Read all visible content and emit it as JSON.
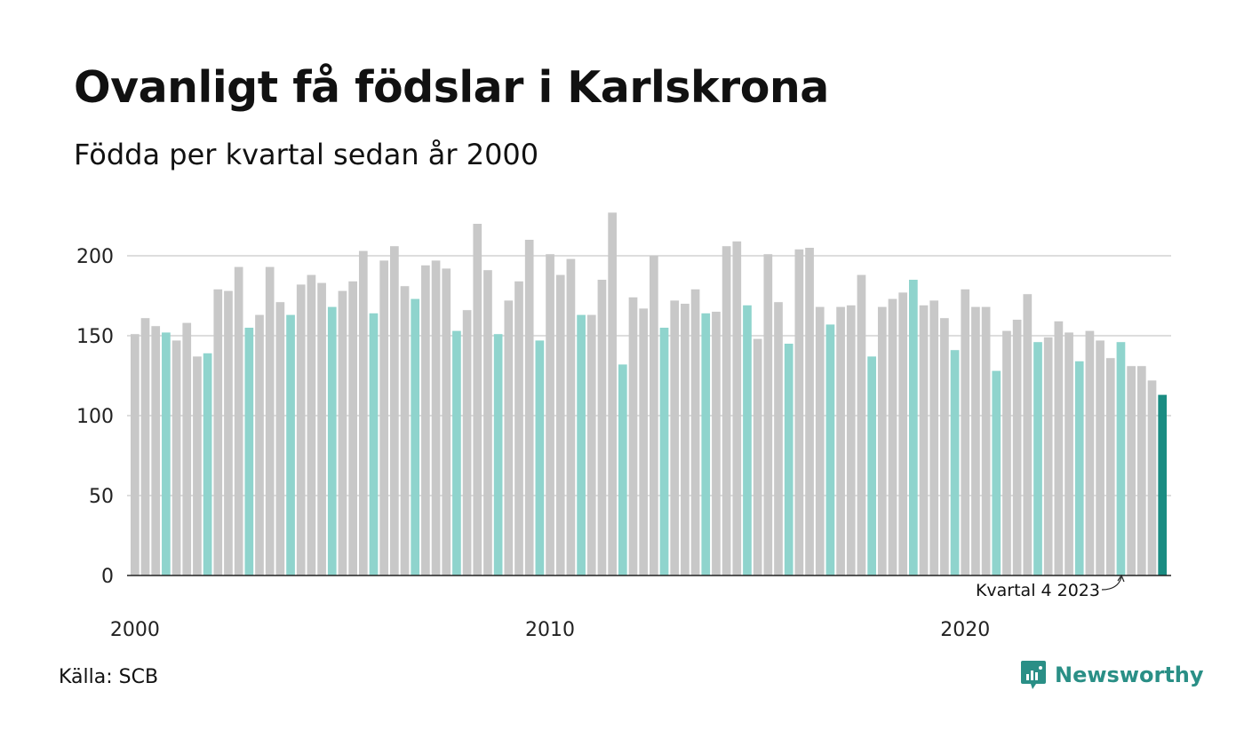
{
  "title": "Ovanligt få födslar i Karlskrona",
  "subtitle": "Födda per kvartal sedan år 2000",
  "source": "Källa: SCB",
  "brand": {
    "name": "Newsworthy",
    "icon": "newsworthy-logo-icon"
  },
  "colors": {
    "default_bar": "#c8c8c8",
    "q4_bar": "#8fd4cd",
    "latest_bar": "#1a8c82",
    "grid": "#dddddd",
    "axis": "#222222",
    "brand": "#2a8f86"
  },
  "chart_data": {
    "type": "bar",
    "title": "Ovanligt få födslar i Karlskrona",
    "subtitle": "Födda per kvartal sedan år 2000",
    "xlabel": "",
    "ylabel": "",
    "ylim": [
      0,
      230
    ],
    "yticks": [
      0,
      50,
      100,
      150,
      200
    ],
    "xtick_labels": [
      "2000",
      "2010",
      "2020"
    ],
    "grid": true,
    "highlight": "Kvartal 4 bars in teal; latest quarter in dark teal",
    "annotation": "Kvartal 4 2023",
    "series": [
      {
        "values": [
          151,
          161,
          156,
          152,
          147,
          158,
          137,
          139,
          179,
          178,
          193,
          155,
          163,
          193,
          171,
          163,
          182,
          188,
          183,
          168,
          178,
          184,
          203,
          164,
          197,
          206,
          181,
          173,
          194,
          197,
          192,
          153,
          166,
          220,
          191,
          151,
          172,
          184,
          210,
          147,
          201,
          188,
          198,
          163,
          163,
          185,
          227,
          132,
          174,
          167,
          200,
          155,
          172,
          170,
          179,
          164,
          165,
          206,
          209,
          169,
          148,
          201,
          171,
          145,
          204,
          205,
          168,
          157,
          168,
          169,
          188,
          137,
          168,
          173,
          177,
          185,
          169,
          172,
          161,
          141,
          179,
          168,
          168,
          128,
          153,
          160,
          176,
          146,
          149,
          159,
          152,
          134,
          153,
          147,
          136,
          146,
          131,
          131,
          122,
          113
        ]
      }
    ]
  }
}
